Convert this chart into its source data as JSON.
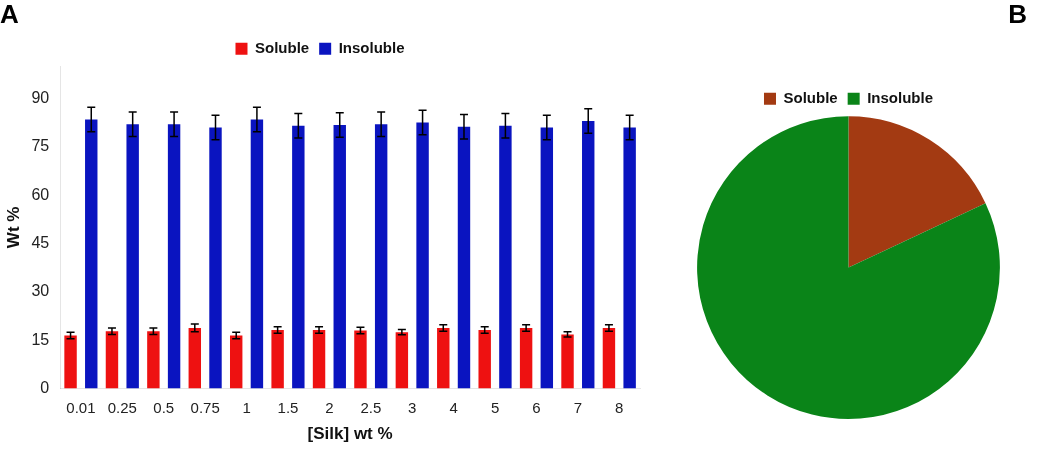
{
  "chart_data": [
    {
      "type": "bar",
      "title": "A",
      "xlabel": "[Silk] wt %",
      "ylabel": "Wt %",
      "categories": [
        "0.01",
        "0.25",
        "0.5",
        "0.75",
        "1",
        "1.5",
        "2",
        "2.5",
        "3",
        "4",
        "5",
        "6",
        "7",
        "8"
      ],
      "series": [
        {
          "name": "Soluble",
          "color": "#ee1111",
          "values": [
            16.5,
            17.8,
            17.8,
            18.8,
            16.5,
            18.2,
            18.2,
            18,
            17.5,
            18.8,
            18.2,
            18.8,
            16.8,
            18.8
          ],
          "errors": [
            1,
            1,
            1,
            1.2,
            1,
            1,
            1,
            1,
            0.8,
            1,
            1,
            1,
            0.8,
            1
          ]
        },
        {
          "name": "Insoluble",
          "color": "#0a14c0",
          "values": [
            83.5,
            82,
            82,
            81,
            83.5,
            81.5,
            81.8,
            82,
            82.5,
            81.2,
            81.5,
            81,
            83,
            81
          ],
          "errors": [
            3.8,
            3.8,
            3.8,
            3.8,
            3.8,
            3.8,
            3.8,
            3.8,
            3.8,
            3.8,
            3.8,
            3.8,
            3.8,
            3.8
          ]
        }
      ],
      "ylim": [
        0,
        100
      ],
      "yticks": [
        0,
        15,
        30,
        45,
        60,
        75,
        90
      ],
      "grid": false,
      "legend": "top"
    },
    {
      "type": "pie",
      "title": "B",
      "categories": [
        "Soluble",
        "Insoluble"
      ],
      "values": [
        18,
        82
      ],
      "colors": [
        "#a33a12",
        "#0a8418"
      ],
      "legend": "top"
    }
  ]
}
